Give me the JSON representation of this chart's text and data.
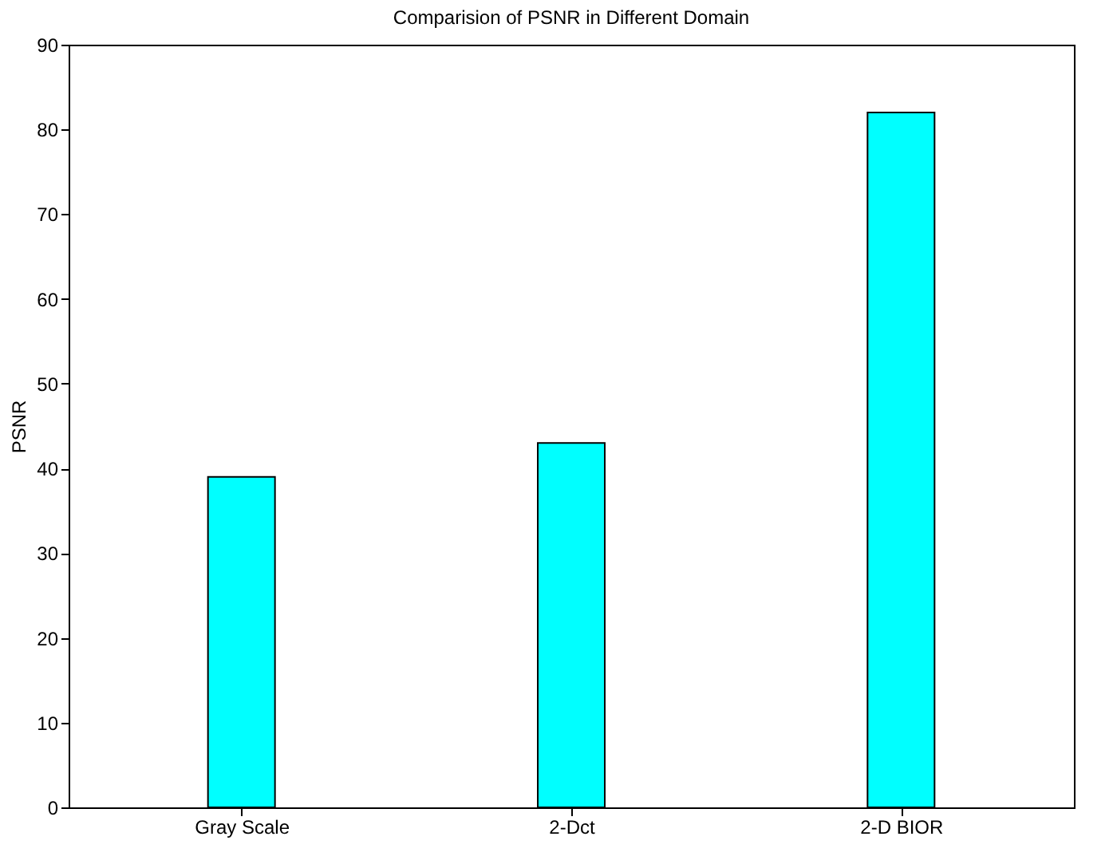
{
  "chart_data": {
    "type": "bar",
    "title": "Comparision of PSNR in Different Domain",
    "ylabel": "PSNR",
    "categories": [
      "Gray Scale",
      "2-Dct",
      "2-D BIOR"
    ],
    "values": [
      39,
      43,
      82
    ],
    "color": "#00ffff",
    "ylim": [
      0,
      90
    ],
    "yticks": [
      0,
      10,
      20,
      30,
      40,
      50,
      60,
      70,
      80,
      90
    ],
    "grid": false
  }
}
